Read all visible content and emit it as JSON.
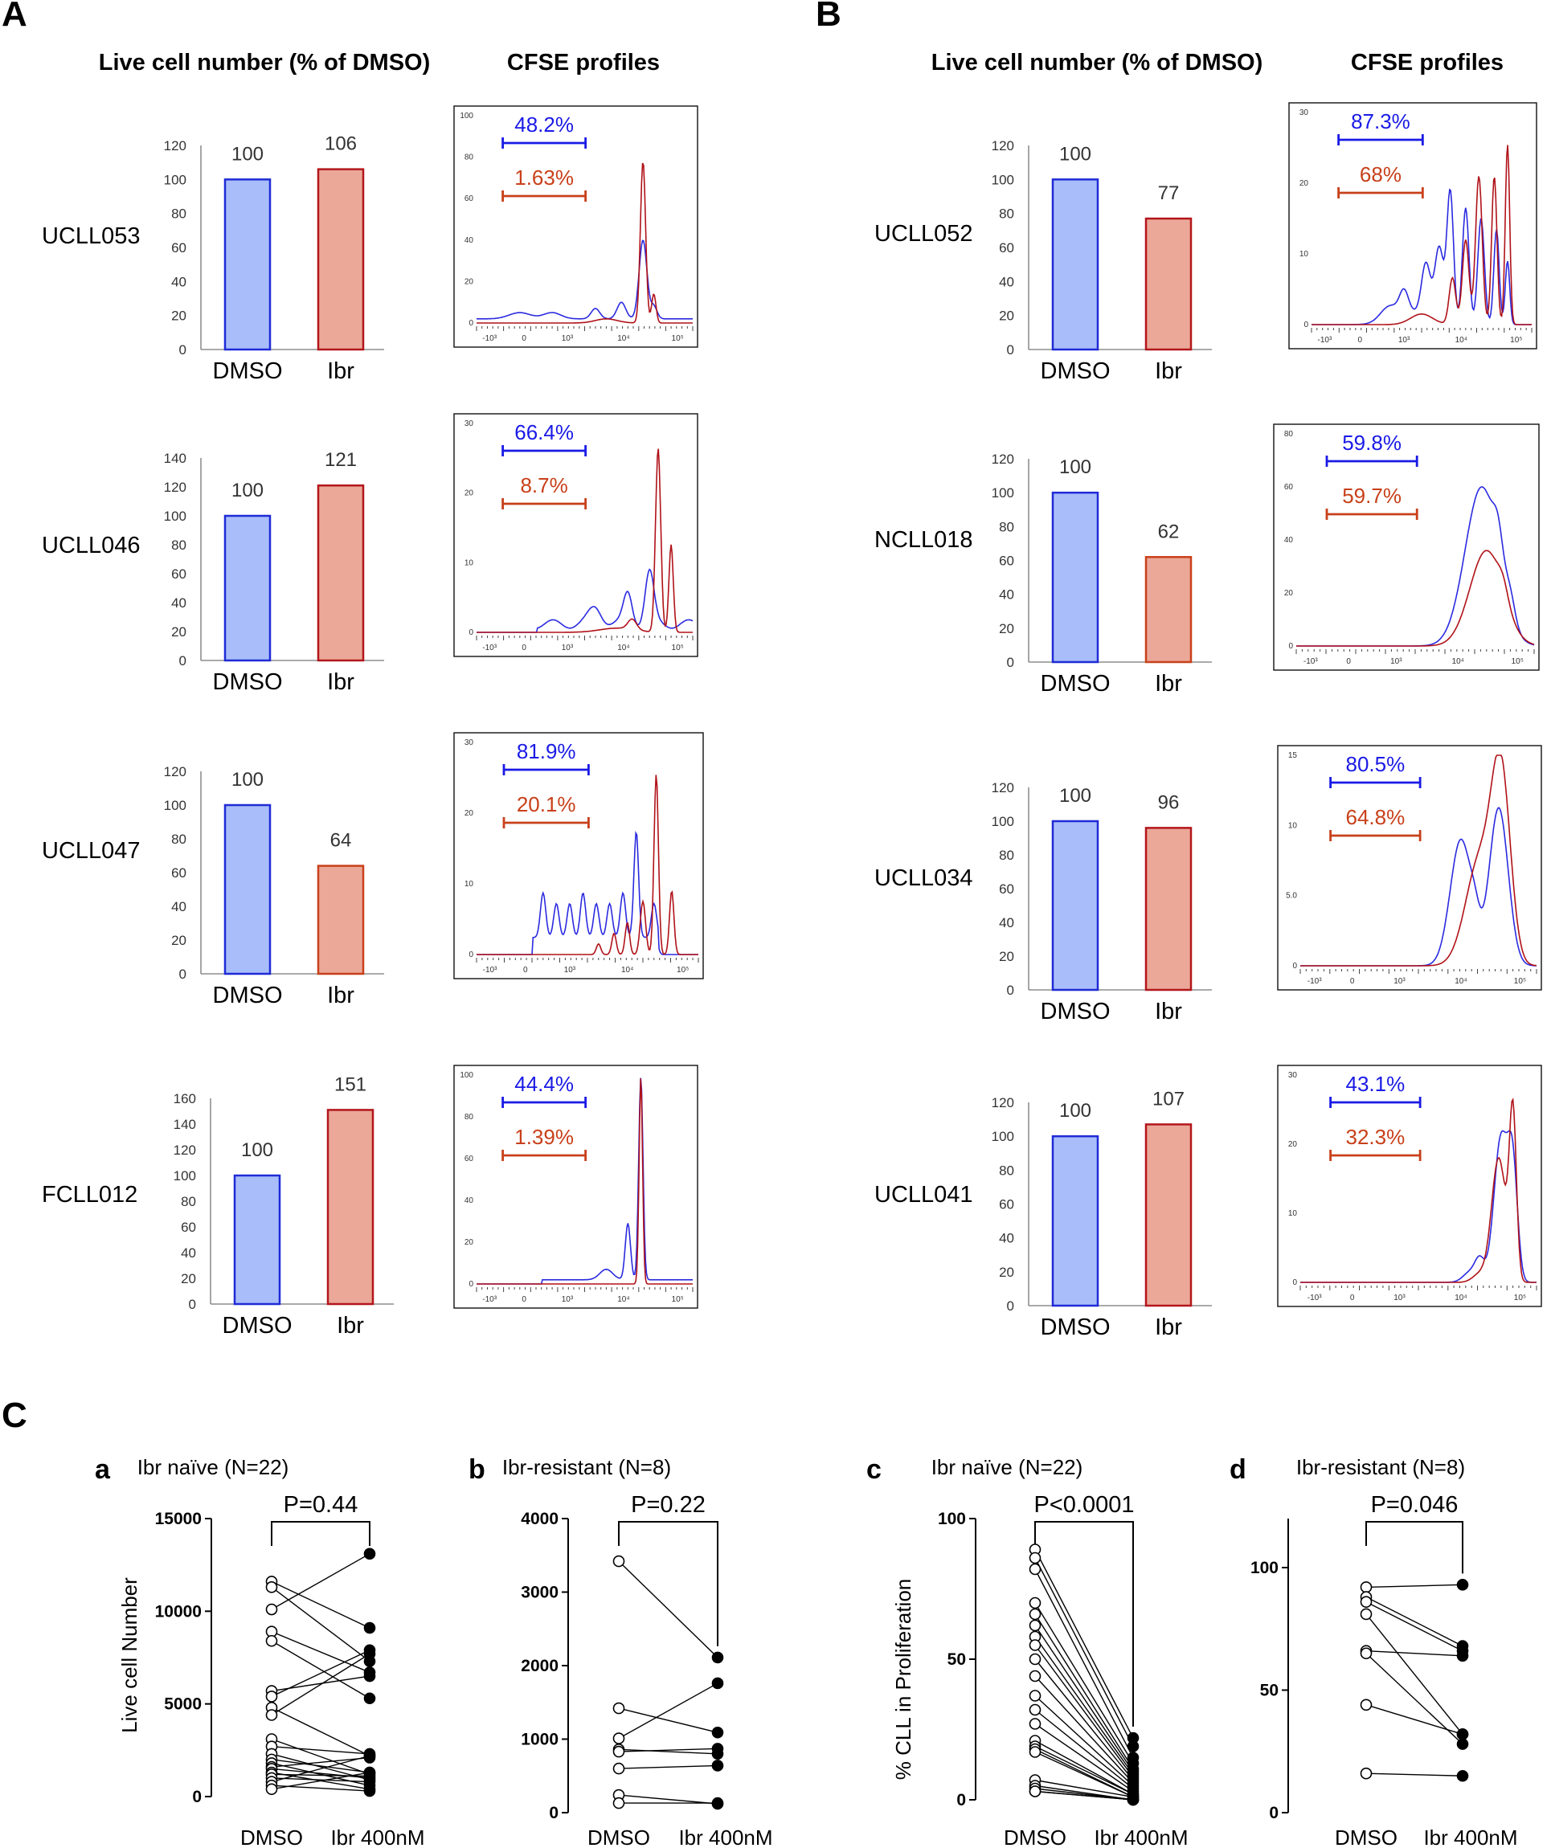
{
  "panel_labels": {
    "A": "A",
    "B": "B",
    "C": "C"
  },
  "headers": {
    "live_cell": "Live cell number (% of DMSO)",
    "cfse": "CFSE profiles"
  },
  "colors": {
    "dmso_fill": "#a9bdfa",
    "dmso_stroke": "#1f2bd6",
    "ibr_fill": "#eba898",
    "ibr_stroke_dark": "#b3161c",
    "ibr_stroke_orange": "#c8401a",
    "blue_gate": "#1a1ae6",
    "red_gate": "#c8401a",
    "curve_blue": "#2a2ae0",
    "curve_red": "#b01218"
  },
  "chart_data": [
    {
      "type": "bar",
      "panel": "A",
      "sample": "UCLL053",
      "categories": [
        "DMSO",
        "Ibr"
      ],
      "values": [
        100,
        106
      ],
      "value_labels": [
        "100",
        "106"
      ],
      "ylim": [
        0,
        120
      ],
      "yticks": [
        "0",
        "20",
        "40",
        "60",
        "80",
        "100",
        "120"
      ],
      "cfse": {
        "gates": [
          {
            "label": "48.2%",
            "color": "blue"
          },
          {
            "label": "1.63%",
            "color": "red"
          }
        ],
        "yticks": [
          "0",
          "20",
          "40",
          "60",
          "80",
          "100"
        ],
        "xticks": [
          "-10³",
          "0",
          "10³",
          "10⁴",
          "10⁵"
        ],
        "ymax": 100,
        "profile": "late_peak"
      }
    },
    {
      "type": "bar",
      "panel": "A",
      "sample": "UCLL046",
      "categories": [
        "DMSO",
        "Ibr"
      ],
      "values": [
        100,
        121
      ],
      "value_labels": [
        "100",
        "121"
      ],
      "ylim": [
        0,
        140
      ],
      "yticks": [
        "0",
        "20",
        "40",
        "60",
        "80",
        "100",
        "120",
        "140"
      ],
      "cfse": {
        "gates": [
          {
            "label": "66.4%",
            "color": "blue"
          },
          {
            "label": "8.7%",
            "color": "red"
          }
        ],
        "yticks": [
          "0",
          "10",
          "20",
          "30"
        ],
        "xticks": [
          "-10³",
          "0",
          "10³",
          "10⁴",
          "10⁵"
        ],
        "ymax": 30,
        "profile": "late_peak_tail"
      }
    },
    {
      "type": "bar",
      "panel": "A",
      "sample": "UCLL047",
      "categories": [
        "DMSO",
        "Ibr"
      ],
      "values": [
        100,
        64
      ],
      "value_labels": [
        "100",
        "64"
      ],
      "ylim": [
        0,
        120
      ],
      "yticks": [
        "0",
        "20",
        "40",
        "60",
        "80",
        "100",
        "120"
      ],
      "cfse": {
        "gates": [
          {
            "label": "81.9%",
            "color": "blue"
          },
          {
            "label": "20.1%",
            "color": "red"
          }
        ],
        "yticks": [
          "0",
          "10",
          "20",
          "30"
        ],
        "xticks": [
          "-10³",
          "0",
          "10³",
          "10⁴",
          "10⁵"
        ],
        "ymax": 30,
        "profile": "many_peaks"
      }
    },
    {
      "type": "bar",
      "panel": "A",
      "sample": "FCLL012",
      "categories": [
        "DMSO",
        "Ibr"
      ],
      "values": [
        100,
        151
      ],
      "value_labels": [
        "100",
        "151"
      ],
      "ylim": [
        0,
        160
      ],
      "yticks": [
        "0",
        "20",
        "40",
        "60",
        "80",
        "100",
        "120",
        "140",
        "160"
      ],
      "cfse": {
        "gates": [
          {
            "label": "44.4%",
            "color": "blue"
          },
          {
            "label": "1.39%",
            "color": "red"
          }
        ],
        "yticks": [
          "0",
          "20",
          "40",
          "60",
          "80",
          "100"
        ],
        "xticks": [
          "-10³",
          "0",
          "10³",
          "10⁴",
          "10⁵"
        ],
        "ymax": 100,
        "profile": "sharp_peak"
      }
    },
    {
      "type": "bar",
      "panel": "B",
      "sample": "UCLL052",
      "categories": [
        "DMSO",
        "Ibr"
      ],
      "values": [
        100,
        77
      ],
      "value_labels": [
        "100",
        "77"
      ],
      "ylim": [
        0,
        120
      ],
      "yticks": [
        "0",
        "20",
        "40",
        "60",
        "80",
        "100",
        "120"
      ],
      "cfse": {
        "gates": [
          {
            "label": "87.3%",
            "color": "blue"
          },
          {
            "label": "68%",
            "color": "red"
          }
        ],
        "yticks": [
          "0",
          "10",
          "20",
          "30"
        ],
        "xticks": [
          "-10³",
          "0",
          "10³",
          "10⁴",
          "10⁵"
        ],
        "ymax": 30,
        "profile": "multi_peaks_high"
      }
    },
    {
      "type": "bar",
      "panel": "B",
      "sample": "NCLL018",
      "categories": [
        "DMSO",
        "Ibr"
      ],
      "values": [
        100,
        62
      ],
      "value_labels": [
        "100",
        "62"
      ],
      "ylim": [
        0,
        120
      ],
      "yticks": [
        "0",
        "20",
        "40",
        "60",
        "80",
        "100",
        "120"
      ],
      "cfse": {
        "gates": [
          {
            "label": "59.8%",
            "color": "blue"
          },
          {
            "label": "59.7%",
            "color": "red"
          }
        ],
        "yticks": [
          "0",
          "20",
          "40",
          "60",
          "80"
        ],
        "xticks": [
          "-10³",
          "0",
          "10³",
          "10⁴",
          "10⁵"
        ],
        "ymax": 80,
        "profile": "broad_late"
      }
    },
    {
      "type": "bar",
      "panel": "B",
      "sample": "UCLL034",
      "categories": [
        "DMSO",
        "Ibr"
      ],
      "values": [
        100,
        96
      ],
      "value_labels": [
        "100",
        "96"
      ],
      "ylim": [
        0,
        120
      ],
      "yticks": [
        "0",
        "20",
        "40",
        "60",
        "80",
        "100",
        "120"
      ],
      "cfse": {
        "gates": [
          {
            "label": "80.5%",
            "color": "blue"
          },
          {
            "label": "64.8%",
            "color": "red"
          }
        ],
        "yticks": [
          "0",
          "5.0",
          "10",
          "15"
        ],
        "xticks": [
          "-10³",
          "0",
          "10³",
          "10⁴",
          "10⁵"
        ],
        "ymax": 15,
        "profile": "broad_mid"
      }
    },
    {
      "type": "bar",
      "panel": "B",
      "sample": "UCLL041",
      "categories": [
        "DMSO",
        "Ibr"
      ],
      "values": [
        100,
        107
      ],
      "value_labels": [
        "100",
        "107"
      ],
      "ylim": [
        0,
        120
      ],
      "yticks": [
        "0",
        "20",
        "40",
        "60",
        "80",
        "100",
        "120"
      ],
      "cfse": {
        "gates": [
          {
            "label": "43.1%",
            "color": "blue"
          },
          {
            "label": "32.3%",
            "color": "red"
          }
        ],
        "yticks": [
          "0",
          "10",
          "20",
          "30"
        ],
        "xticks": [
          "-10³",
          "0",
          "10³",
          "10⁴",
          "10⁵"
        ],
        "ymax": 30,
        "profile": "late_double"
      }
    },
    {
      "type": "scatter",
      "panel": "C",
      "subpanel": "a",
      "title": "Ibr naïve (N=22)",
      "pvalue": "P=0.44",
      "ylabel": "Live cell Number",
      "xlabels": [
        "DMSO",
        "Ibr 400nM"
      ],
      "ylim": [
        0,
        15000
      ],
      "yticks": [
        0,
        5000,
        10000,
        15000
      ],
      "pairs": [
        [
          11600,
          9100
        ],
        [
          11300,
          7300
        ],
        [
          10100,
          13100
        ],
        [
          8900,
          6700
        ],
        [
          8400,
          5300
        ],
        [
          5700,
          6500
        ],
        [
          5400,
          7900
        ],
        [
          4800,
          2200
        ],
        [
          4400,
          7700
        ],
        [
          3100,
          1200
        ],
        [
          2700,
          2300
        ],
        [
          2300,
          900
        ],
        [
          2000,
          1300
        ],
        [
          1800,
          600
        ],
        [
          1600,
          2100
        ],
        [
          1500,
          1000
        ],
        [
          1300,
          400
        ],
        [
          1200,
          1100
        ],
        [
          1000,
          800
        ],
        [
          800,
          2200
        ],
        [
          600,
          300
        ],
        [
          400,
          1300
        ]
      ]
    },
    {
      "type": "scatter",
      "panel": "C",
      "subpanel": "b",
      "title": "Ibr-resistant (N=8)",
      "pvalue": "P=0.22",
      "ylabel": "",
      "xlabels": [
        "DMSO",
        "Ibr 400nM"
      ],
      "ylim": [
        0,
        4000
      ],
      "yticks": [
        0,
        1000,
        2000,
        3000,
        4000
      ],
      "pairs": [
        [
          3420,
          2110
        ],
        [
          1420,
          1090
        ],
        [
          1010,
          1760
        ],
        [
          860,
          800
        ],
        [
          830,
          870
        ],
        [
          600,
          640
        ],
        [
          240,
          120
        ],
        [
          130,
          130
        ]
      ]
    },
    {
      "type": "scatter",
      "panel": "C",
      "subpanel": "c",
      "title": "Ibr naïve (N=22)",
      "pvalue": "P<0.0001",
      "ylabel": "% CLL in Proliferation",
      "xlabels": [
        "DMSO",
        "Ibr 400nM"
      ],
      "ylim": [
        0,
        100
      ],
      "yticks": [
        0,
        50,
        100
      ],
      "pairs": [
        [
          89,
          22
        ],
        [
          86,
          19
        ],
        [
          82,
          15
        ],
        [
          70,
          13
        ],
        [
          66,
          11
        ],
        [
          62,
          10
        ],
        [
          58,
          9
        ],
        [
          55,
          8
        ],
        [
          50,
          7
        ],
        [
          44,
          6
        ],
        [
          37,
          5
        ],
        [
          32,
          4
        ],
        [
          27,
          3
        ],
        [
          21,
          2
        ],
        [
          19,
          2
        ],
        [
          18,
          1
        ],
        [
          17,
          1
        ],
        [
          7,
          1
        ],
        [
          5,
          0
        ],
        [
          4,
          0
        ],
        [
          3,
          0
        ],
        [
          3,
          0
        ]
      ]
    },
    {
      "type": "scatter",
      "panel": "C",
      "subpanel": "d",
      "title": "Ibr-resistant (N=8)",
      "pvalue": "P=0.046",
      "ylabel": "",
      "xlabels": [
        "DMSO",
        "Ibr 400nM"
      ],
      "ylim": [
        0,
        120
      ],
      "yticks": [
        0,
        50,
        100
      ],
      "pairs": [
        [
          92,
          93
        ],
        [
          88,
          68
        ],
        [
          86,
          66
        ],
        [
          81,
          32
        ],
        [
          66,
          64
        ],
        [
          65,
          28
        ],
        [
          44,
          32
        ],
        [
          16,
          15
        ]
      ]
    }
  ]
}
